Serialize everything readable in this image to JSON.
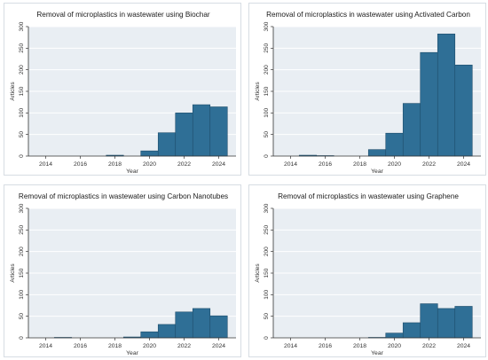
{
  "colors": {
    "bar_fill": "#2f6f96",
    "bar_edge": "#1e4d6b",
    "plot_bg": "#e9eef3",
    "grid": "#ffffff",
    "axis": "#333333"
  },
  "chart_data": [
    {
      "type": "bar",
      "title": "Removal of microplastics in wastewater using Biochar",
      "xlabel": "Year",
      "ylabel": "Articles",
      "x": [
        2014,
        2015,
        2016,
        2017,
        2018,
        2019,
        2020,
        2021,
        2022,
        2023,
        2024
      ],
      "values": [
        0,
        0,
        0,
        0,
        2,
        0,
        12,
        54,
        100,
        119,
        114
      ],
      "xticks": [
        "2014",
        "2016",
        "2018",
        "2020",
        "2022",
        "2024"
      ],
      "yticks": [
        "0",
        "50",
        "100",
        "150",
        "200",
        "250",
        "300"
      ],
      "ylim": [
        0,
        300
      ],
      "grid": true
    },
    {
      "type": "bar",
      "title": "Removal of microplastics in wastewater using Activated Carbon",
      "xlabel": "Year",
      "ylabel": "Articles",
      "x": [
        2014,
        2015,
        2016,
        2017,
        2018,
        2019,
        2020,
        2021,
        2022,
        2023,
        2024
      ],
      "values": [
        0,
        2,
        1,
        0,
        0,
        15,
        53,
        122,
        240,
        283,
        211
      ],
      "xticks": [
        "2014",
        "2016",
        "2018",
        "2020",
        "2022",
        "2024"
      ],
      "yticks": [
        "0",
        "50",
        "100",
        "150",
        "200",
        "250",
        "300"
      ],
      "ylim": [
        0,
        300
      ],
      "grid": true
    },
    {
      "type": "bar",
      "title": "Removal of microplastics in wastewater using Carbon Nanotubes",
      "xlabel": "Year",
      "ylabel": "Articles",
      "x": [
        2014,
        2015,
        2016,
        2017,
        2018,
        2019,
        2020,
        2021,
        2022,
        2023,
        2024
      ],
      "values": [
        0,
        1,
        0,
        0,
        0,
        2,
        14,
        31,
        60,
        68,
        51
      ],
      "xticks": [
        "2014",
        "2016",
        "2018",
        "2020",
        "2022",
        "2024"
      ],
      "yticks": [
        "0",
        "50",
        "100",
        "150",
        "200",
        "250",
        "300"
      ],
      "ylim": [
        0,
        300
      ],
      "grid": true
    },
    {
      "type": "bar",
      "title": "Removal of microplastics in wastewater using Graphene",
      "xlabel": "Year",
      "ylabel": "Articles",
      "x": [
        2014,
        2015,
        2016,
        2017,
        2018,
        2019,
        2020,
        2021,
        2022,
        2023,
        2024
      ],
      "values": [
        0,
        0,
        0,
        0,
        0,
        1,
        11,
        35,
        79,
        68,
        73
      ],
      "xticks": [
        "2014",
        "2016",
        "2018",
        "2020",
        "2022",
        "2024"
      ],
      "yticks": [
        "0",
        "50",
        "100",
        "150",
        "200",
        "250",
        "300"
      ],
      "ylim": [
        0,
        300
      ],
      "grid": true
    }
  ]
}
